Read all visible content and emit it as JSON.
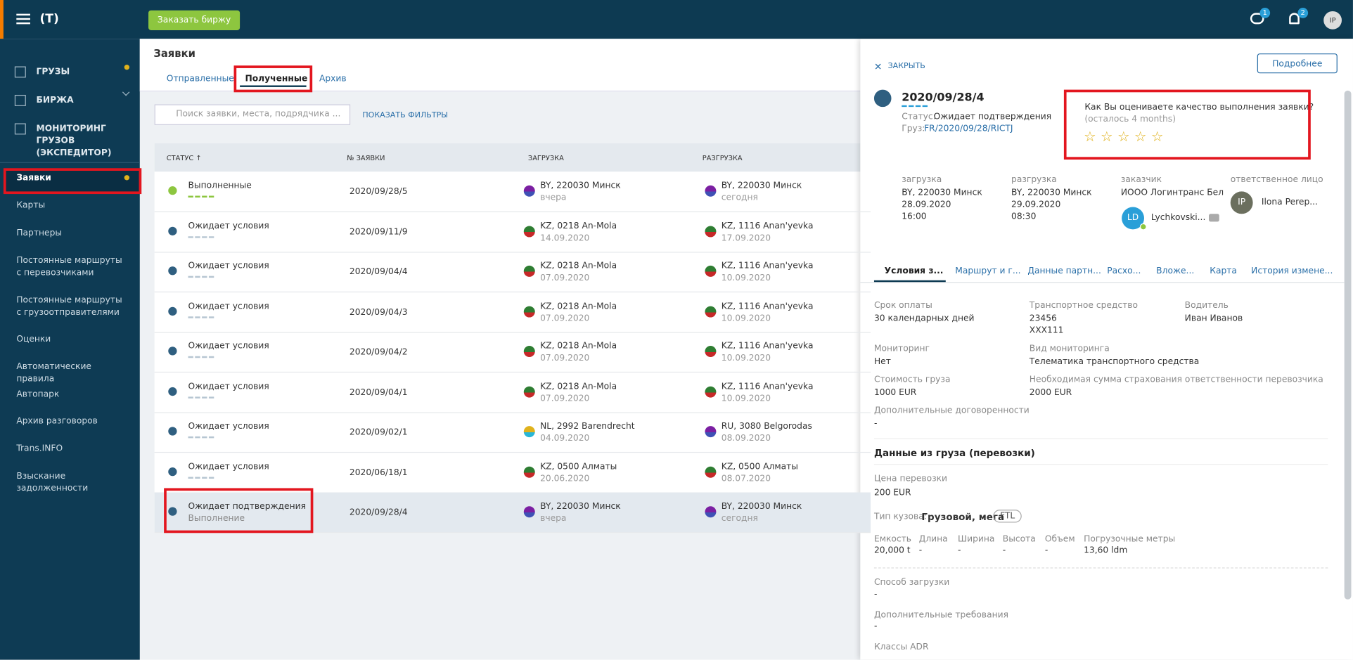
{
  "header": {
    "logo": "(T)",
    "order_button": "Заказать биржу",
    "messages_badge": "1",
    "notifications_badge": "2",
    "avatar": "IP"
  },
  "sidebar": {
    "top": [
      "ГРУЗЫ",
      "БИРЖА",
      "МОНИТОРИНГ ГРУЗОВ (ЭКСПЕДИТОР)"
    ],
    "items": [
      "Заявки",
      "Карты",
      "Партнеры",
      "Постоянные маршруты с перевозчиками",
      "Постоянные маршруты с грузоотправителями",
      "Оценки",
      "Автоматические правила",
      "Автопарк",
      "Архив разговоров",
      "Trans.INFO",
      "Взыскание задолженности"
    ]
  },
  "page": {
    "title": "Заявки",
    "tabs": [
      "Отправленные",
      "Полученные",
      "Архив"
    ],
    "search_placeholder": "Поиск заявки, места, подрядчика ...",
    "filters": "ПОКАЗАТЬ ФИЛЬТРЫ"
  },
  "table": {
    "columns": [
      "СТАТУС ↑",
      "№ ЗАЯВКИ",
      "ЗАГРУЗКА",
      "РАЗГРУЗКА"
    ],
    "rows": [
      {
        "status": "Выполненные",
        "number": "2020/09/28/5",
        "load": "BY, 220030 Минск",
        "load_date": "вчера",
        "unload": "BY, 220030 Минск",
        "unload_date": "сегодня"
      },
      {
        "status": "Ожидает условия",
        "number": "2020/09/11/9",
        "load": "KZ, 0218 An-Mola",
        "load_date": "14.09.2020",
        "unload": "KZ, 1116 Anan'yevka",
        "unload_date": "17.09.2020"
      },
      {
        "status": "Ожидает условия",
        "number": "2020/09/04/4",
        "load": "KZ, 0218 An-Mola",
        "load_date": "07.09.2020",
        "unload": "KZ, 1116 Anan'yevka",
        "unload_date": "10.09.2020"
      },
      {
        "status": "Ожидает условия",
        "number": "2020/09/04/3",
        "load": "KZ, 0218 An-Mola",
        "load_date": "07.09.2020",
        "unload": "KZ, 1116 Anan'yevka",
        "unload_date": "10.09.2020"
      },
      {
        "status": "Ожидает условия",
        "number": "2020/09/04/2",
        "load": "KZ, 0218 An-Mola",
        "load_date": "07.09.2020",
        "unload": "KZ, 1116 Anan'yevka",
        "unload_date": "10.09.2020"
      },
      {
        "status": "Ожидает условия",
        "number": "2020/09/04/1",
        "load": "KZ, 0218 An-Mola",
        "load_date": "07.09.2020",
        "unload": "KZ, 1116 Anan'yevka",
        "unload_date": "10.09.2020"
      },
      {
        "status": "Ожидает условия",
        "number": "2020/09/02/1",
        "load": "NL, 2992 Barendrecht",
        "load_date": "04.09.2020",
        "unload": "RU, 3080 Belgorodas",
        "unload_date": "08.09.2020"
      },
      {
        "status": "Ожидает условия",
        "number": "2020/06/18/1",
        "load": "KZ, 0500 Алматы",
        "load_date": "20.06.2020",
        "unload": "KZ, 0500 Алматы",
        "unload_date": "08.07.2020"
      },
      {
        "status": "Ожидает подтверждения",
        "status_sub": "Выполнение",
        "number": "2020/09/28/4",
        "load": "BY, 220030 Минск",
        "load_date": "вчера",
        "unload": "BY, 220030 Минск",
        "unload_date": "сегодня"
      }
    ]
  },
  "panel": {
    "close": "ЗАКРЫТЬ",
    "more": "Подробнее",
    "number": "2020/09/28/4",
    "status_label": "Статус:",
    "status": "Ожидает подтверждения",
    "cargo_label": "Груз:",
    "cargo": "FR/2020/09/28/RICTJ",
    "rating_question": "Как Вы оцениваете качество выполнения заявки?",
    "rating_left": "(осталось 4 months)",
    "info": [
      {
        "label": "загрузка",
        "lines": [
          "BY, 220030 Минск",
          "28.09.2020",
          "16:00"
        ]
      },
      {
        "label": "разгрузка",
        "lines": [
          "BY, 220030 Минск",
          "29.09.2020",
          "08:30"
        ]
      },
      {
        "label": "заказчик",
        "lines": [
          "ИООО Логинтранс Бел"
        ],
        "avatar": "LD",
        "person": "Lychkovski..."
      },
      {
        "label": "ответственное лицо",
        "avatar": "IP",
        "person": "Ilona Perep..."
      }
    ],
    "tabs": [
      "Условия з...",
      "Маршрут и г...",
      "Данные партн...",
      "Расхо...",
      "Вложе...",
      "Карта",
      "История измене..."
    ],
    "fields": [
      {
        "label": "Срок оплаты",
        "lines": [
          "30 календарных дней"
        ]
      },
      {
        "label": "Транспортное средство",
        "lines": [
          "23456",
          "XXX111"
        ]
      },
      {
        "label": "Водитель",
        "lines": [
          "Иван Иванов"
        ]
      },
      {
        "label": "Мониторинг",
        "lines": [
          "Нет"
        ]
      },
      {
        "label": "Вид мониторинга",
        "lines": [
          "Телематика транспортного средства"
        ]
      },
      {
        "label": "Стоимость груза",
        "lines": [
          "1000 EUR"
        ]
      },
      {
        "label": "Необходимая сумма страхования ответственности перевозчика",
        "lines": [
          "2000 EUR"
        ]
      },
      {
        "label": "Дополнительные договоренности",
        "lines": [
          "-"
        ]
      }
    ],
    "section": "Данные из груза (перевозки)",
    "price_label": "Цена перевозки",
    "price": "200 EUR",
    "body_label": "Тип кузова:",
    "body": "Грузовой, мега",
    "body_badge": "FTL",
    "dims": [
      {
        "label": "Емкость",
        "value": "20,000 t"
      },
      {
        "label": "Длина",
        "value": "-"
      },
      {
        "label": "Ширина",
        "value": "-"
      },
      {
        "label": "Высота",
        "value": "-"
      },
      {
        "label": "Объем",
        "value": "-"
      },
      {
        "label": "Погрузочные метры",
        "value": "13,60 ldm"
      }
    ],
    "loading_label": "Способ загрузки",
    "loading": "-",
    "extra_label": "Дополнительные требования",
    "extra": "-",
    "adr_label": "Классы ADR"
  }
}
